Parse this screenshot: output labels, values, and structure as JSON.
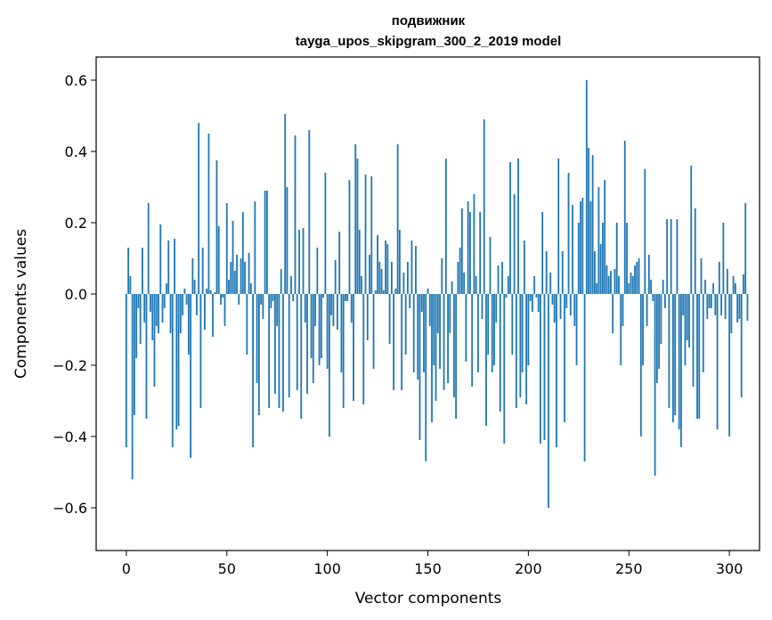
{
  "chart_data": {
    "type": "bar",
    "title": "подвижник",
    "subtitle": "tayga_upos_skipgram_300_2_2019 model",
    "xlabel": "Vector components",
    "ylabel": "Components values",
    "xlim": [
      -15,
      315
    ],
    "ylim": [
      -0.72,
      0.665
    ],
    "xticks": [
      0,
      50,
      100,
      150,
      200,
      250,
      300
    ],
    "xtick_labels": [
      "0",
      "50",
      "100",
      "150",
      "200",
      "250",
      "300"
    ],
    "yticks": [
      -0.6,
      -0.4,
      -0.2,
      0.0,
      0.2,
      0.4,
      0.6
    ],
    "ytick_labels": [
      "−0.6",
      "−0.4",
      "−0.2",
      "0.0",
      "0.2",
      "0.4",
      "0.6"
    ],
    "bar_color": "#1f77b4",
    "values": [
      -0.43,
      0.13,
      0.05,
      -0.52,
      -0.34,
      -0.18,
      -0.04,
      -0.14,
      0.13,
      -0.08,
      -0.35,
      0.255,
      -0.05,
      -0.13,
      -0.26,
      -0.09,
      -0.11,
      0.195,
      -0.08,
      -0.04,
      0.03,
      0.15,
      -0.11,
      -0.43,
      0.155,
      -0.38,
      -0.37,
      -0.11,
      -0.06,
      0.015,
      -0.03,
      -0.17,
      -0.46,
      0.1,
      0.04,
      -0.06,
      0.48,
      -0.32,
      0.13,
      -0.1,
      0.015,
      0.45,
      0.01,
      -0.12,
      0.005,
      0.375,
      0.19,
      -0.03,
      -0.01,
      -0.09,
      0.255,
      0.04,
      0.09,
      0.205,
      0.065,
      0.11,
      -0.03,
      0.1,
      0.23,
      0.09,
      -0.17,
      0.115,
      0.03,
      -0.43,
      0.26,
      -0.25,
      -0.34,
      -0.03,
      -0.07,
      0.29,
      0.29,
      -0.32,
      -0.04,
      -0.02,
      -0.28,
      -0.09,
      -0.32,
      0.07,
      -0.33,
      0.505,
      0.3,
      -0.29,
      0.05,
      -0.02,
      0.445,
      -0.27,
      0.18,
      -0.35,
      0.185,
      -0.08,
      -0.28,
      0.46,
      -0.18,
      -0.25,
      -0.09,
      0.13,
      -0.2,
      -0.18,
      -0.01,
      0.34,
      -0.21,
      -0.4,
      -0.06,
      -0.09,
      0.095,
      -0.1,
      0.175,
      -0.22,
      -0.32,
      -0.02,
      -0.02,
      0.32,
      -0.08,
      -0.3,
      0.42,
      0.38,
      0.18,
      0.05,
      -0.31,
      0.335,
      -0.13,
      0.11,
      0.33,
      -0.21,
      0.01,
      0.165,
      0.09,
      0.07,
      0.01,
      0.15,
      0.14,
      -0.14,
      0.09,
      -0.27,
      0.015,
      0.42,
      0.18,
      -0.27,
      0.06,
      -0.17,
      0.09,
      -0.04,
      0.15,
      -0.22,
      0.135,
      -0.24,
      -0.41,
      -0.05,
      -0.22,
      -0.47,
      0.015,
      -0.09,
      -0.36,
      -0.2,
      -0.3,
      -0.11,
      -0.21,
      0.1,
      -0.27,
      0.38,
      -0.25,
      -0.11,
      0.035,
      -0.29,
      -0.35,
      0.09,
      0.13,
      0.24,
      0.06,
      -0.19,
      0.26,
      0.23,
      -0.26,
      0.28,
      0.05,
      -0.22,
      0.23,
      -0.07,
      0.49,
      -0.37,
      -0.17,
      0.16,
      -0.22,
      -0.2,
      -0.08,
      0.08,
      -0.33,
      0.09,
      -0.42,
      -0.01,
      0.05,
      0.37,
      -0.17,
      0.28,
      -0.32,
      0.38,
      -0.29,
      -0.22,
      0.15,
      -0.31,
      -0.2,
      -0.02,
      -0.05,
      0.05,
      -0.01,
      -0.05,
      -0.42,
      0.23,
      -0.41,
      0.12,
      -0.6,
      0.06,
      -0.03,
      -0.08,
      -0.43,
      0.38,
      -0.07,
      0.12,
      -0.36,
      -0.04,
      0.34,
      -0.06,
      0.25,
      -0.09,
      -0.2,
      0.2,
      0.26,
      0.27,
      -0.47,
      0.6,
      0.41,
      0.26,
      0.39,
      0.12,
      0.03,
      0.3,
      0.14,
      0.2,
      0.32,
      0.08,
      0.05,
      0.065,
      -0.11,
      0.07,
      0.2,
      0.05,
      -0.2,
      -0.09,
      0.43,
      0.2,
      0.03,
      0.06,
      0.05,
      0.08,
      0.09,
      0.1,
      -0.4,
      -0.2,
      0.35,
      -0.09,
      0.11,
      0.04,
      -0.02,
      -0.51,
      -0.25,
      -0.21,
      -0.14,
      0.04,
      -0.04,
      0.21,
      -0.32,
      0.21,
      -0.36,
      -0.34,
      0.21,
      -0.38,
      -0.43,
      -0.06,
      -0.2,
      -0.13,
      -0.15,
      0.36,
      -0.26,
      0.24,
      -0.35,
      -0.35,
      0.1,
      -0.22,
      0.04,
      -0.07,
      -0.04,
      -0.04,
      0.03,
      -0.06,
      -0.38,
      0.09,
      -0.06,
      0.2,
      -0.07,
      0.07,
      -0.4,
      -0.11,
      0.05,
      0.03,
      -0.08,
      -0.07,
      -0.29,
      0.055,
      0.255,
      -0.075
    ]
  }
}
